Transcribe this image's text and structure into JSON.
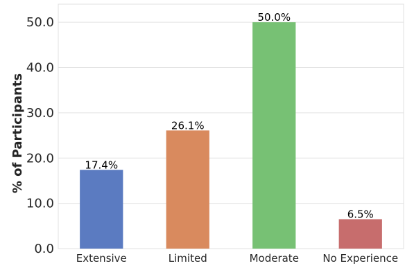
{
  "chart_data": {
    "type": "bar",
    "title": "",
    "xlabel": "",
    "ylabel": "% of Participants",
    "categories": [
      "Extensive",
      "Limited",
      "Moderate",
      "No Experience"
    ],
    "values": [
      17.4,
      26.1,
      50.0,
      6.5
    ],
    "value_labels": [
      "17.4%",
      "26.1%",
      "50.0%",
      "6.5%"
    ],
    "colors": [
      "#5b7bc1",
      "#d98a5e",
      "#77c174",
      "#c76d6d"
    ],
    "ylim": [
      0,
      54
    ],
    "yticks": [
      0,
      10,
      20,
      30,
      40,
      50
    ],
    "ytick_labels": [
      "0.0",
      "10.0",
      "20.0",
      "30.0",
      "40.0",
      "50.0"
    ],
    "grid": true,
    "legend": "none"
  }
}
